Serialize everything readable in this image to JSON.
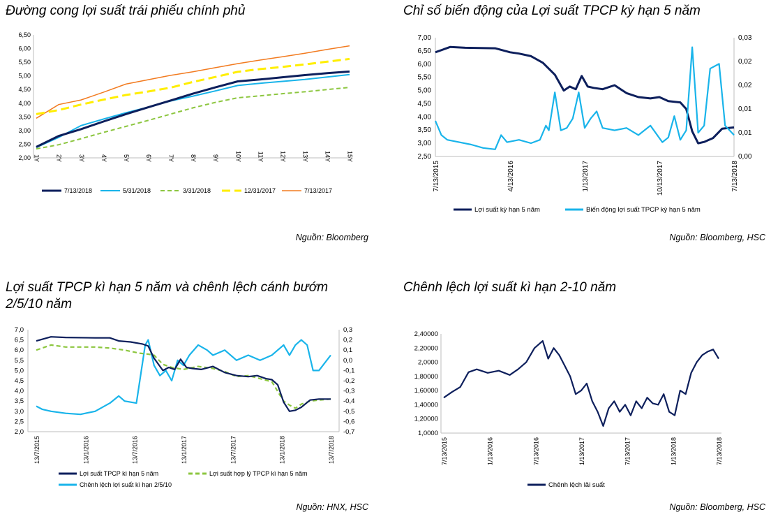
{
  "colors": {
    "navy": "#0d1f5c",
    "cyan": "#19b4ea",
    "green": "#8cc63f",
    "yellow": "#ffee00",
    "orange": "#f27b20",
    "axis": "#bdbdbd"
  },
  "chart_data": [
    {
      "type": "line",
      "title": "Đường cong lợi suất trái phiếu chính phủ",
      "source": "Nguồn: Bloomberg",
      "categories": [
        "1Y",
        "2Y",
        "3Y",
        "4Y",
        "5Y",
        "6Y",
        "7Y",
        "8Y",
        "9Y",
        "10Y",
        "11Y",
        "12Y",
        "13Y",
        "14Y",
        "15Y"
      ],
      "yticks": [
        "2,00",
        "2,50",
        "3,00",
        "3,50",
        "4,00",
        "4,50",
        "5,00",
        "5,50",
        "6,00",
        "6,50"
      ],
      "ylim": [
        2.0,
        6.5
      ],
      "series": [
        {
          "name": "7/13/2018",
          "color": "#0d1f5c",
          "dash": "",
          "width": 3,
          "values": [
            2.4,
            2.8,
            3.05,
            3.33,
            3.6,
            3.85,
            4.1,
            4.35,
            4.58,
            4.8,
            4.87,
            4.95,
            5.03,
            5.1,
            5.16
          ]
        },
        {
          "name": "5/31/2018",
          "color": "#19b4ea",
          "dash": "",
          "width": 2,
          "values": [
            2.38,
            2.75,
            3.18,
            3.42,
            3.65,
            3.86,
            4.08,
            4.26,
            4.45,
            4.65,
            4.73,
            4.8,
            4.87,
            4.96,
            5.05
          ]
        },
        {
          "name": "3/31/2018",
          "color": "#8cc63f",
          "dash": "6,4",
          "width": 2,
          "values": [
            2.33,
            2.48,
            2.7,
            2.93,
            3.15,
            3.37,
            3.6,
            3.83,
            4.03,
            4.2,
            4.27,
            4.35,
            4.42,
            4.5,
            4.58
          ]
        },
        {
          "name": "12/31/2017",
          "color": "#ffee00",
          "dash": "12,6",
          "width": 3,
          "values": [
            3.6,
            3.75,
            3.95,
            4.13,
            4.3,
            4.43,
            4.57,
            4.78,
            4.96,
            5.15,
            5.25,
            5.33,
            5.42,
            5.52,
            5.62
          ]
        },
        {
          "name": "7/13/2017",
          "color": "#f27b20",
          "dash": "",
          "width": 1.5,
          "values": [
            3.45,
            3.95,
            4.12,
            4.4,
            4.7,
            4.86,
            5.02,
            5.15,
            5.3,
            5.45,
            5.58,
            5.7,
            5.83,
            5.97,
            6.1
          ]
        }
      ]
    },
    {
      "type": "line",
      "title": "Chỉ số biến động của Lợi suất TPCP kỳ hạn 5 năm",
      "source": "Nguồn: Bloomberg, HSC",
      "x_ticks": [
        "7/13/2015",
        "4/13/2016",
        "1/13/2017",
        "10/13/2017",
        "7/13/2018"
      ],
      "yticks_left": [
        "2,50",
        "3,00",
        "3,50",
        "4,00",
        "4,50",
        "5,00",
        "5,50",
        "6,00",
        "6,50",
        "7,00"
      ],
      "ylim_left": [
        2.5,
        7.0
      ],
      "yticks_right": [
        "0,00",
        "0,01",
        "0,01",
        "0,02",
        "0,02",
        "0,03"
      ],
      "ylim_right": [
        0.0,
        0.025
      ],
      "series": [
        {
          "name": "Lợi suất kỳ hạn 5 năm",
          "axis": "left",
          "color": "#0d1f5c",
          "x": [
            0,
            0.05,
            0.1,
            0.2,
            0.25,
            0.28,
            0.32,
            0.36,
            0.4,
            0.43,
            0.45,
            0.47,
            0.49,
            0.51,
            0.53,
            0.56,
            0.6,
            0.64,
            0.68,
            0.72,
            0.75,
            0.78,
            0.82,
            0.84,
            0.86,
            0.88,
            0.9,
            0.93,
            0.96,
            1.0
          ],
          "values": [
            6.45,
            6.65,
            6.62,
            6.6,
            6.45,
            6.4,
            6.3,
            6.05,
            5.6,
            5.0,
            5.15,
            5.05,
            5.55,
            5.15,
            5.1,
            5.05,
            5.2,
            4.9,
            4.75,
            4.7,
            4.75,
            4.6,
            4.55,
            4.3,
            3.45,
            3.0,
            3.05,
            3.2,
            3.55,
            3.6
          ]
        },
        {
          "name": "Biến động lợi suất TPCP kỳ hạn 5 năm",
          "axis": "right",
          "color": "#19b4ea",
          "x": [
            0,
            0.02,
            0.04,
            0.08,
            0.12,
            0.16,
            0.2,
            0.22,
            0.24,
            0.28,
            0.32,
            0.35,
            0.37,
            0.38,
            0.4,
            0.42,
            0.44,
            0.46,
            0.48,
            0.5,
            0.52,
            0.54,
            0.56,
            0.6,
            0.64,
            0.68,
            0.72,
            0.76,
            0.78,
            0.8,
            0.82,
            0.84,
            0.86,
            0.88,
            0.9,
            0.92,
            0.95,
            0.97,
            1.0
          ],
          "values": [
            0.0075,
            0.0045,
            0.0035,
            0.003,
            0.0025,
            0.0018,
            0.0015,
            0.0045,
            0.003,
            0.0035,
            0.0028,
            0.0035,
            0.0065,
            0.0055,
            0.0135,
            0.0055,
            0.006,
            0.008,
            0.0135,
            0.006,
            0.008,
            0.0095,
            0.006,
            0.0055,
            0.006,
            0.0045,
            0.0065,
            0.003,
            0.004,
            0.0085,
            0.0035,
            0.0055,
            0.023,
            0.005,
            0.0065,
            0.0185,
            0.0195,
            0.0065,
            0.0045
          ]
        }
      ]
    },
    {
      "type": "line",
      "title": "Lợi suất TPCP kì hạn 5 năm và chênh lệch cánh bướm 2/5/10 năm",
      "source": "Nguồn: HNX, HSC",
      "x_ticks": [
        "13/7/2015",
        "13/1/2016",
        "13/7/2016",
        "13/1/2017",
        "13/7/2017",
        "13/1/2018",
        "13/7/2018"
      ],
      "yticks_left": [
        "2,0",
        "2,5",
        "3,0",
        "3,5",
        "4,0",
        "4,5",
        "5,0",
        "5,5",
        "6,0",
        "6,5",
        "7,0"
      ],
      "ylim_left": [
        2.0,
        7.0
      ],
      "yticks_right": [
        "-0,7",
        "-0,6",
        "-0,5",
        "-0,4",
        "-0,3",
        "-0,2",
        "-0,1",
        "0,0",
        "0,1",
        "0,2",
        "0,3"
      ],
      "ylim_right": [
        -0.7,
        0.3
      ],
      "series": [
        {
          "name": "Lợi suất TPCP  kì hạn 5 năm",
          "axis": "left",
          "color": "#0d1f5c",
          "dash": "",
          "x": [
            0,
            0.05,
            0.1,
            0.2,
            0.25,
            0.28,
            0.32,
            0.36,
            0.38,
            0.4,
            0.43,
            0.45,
            0.47,
            0.49,
            0.51,
            0.53,
            0.56,
            0.6,
            0.64,
            0.68,
            0.72,
            0.75,
            0.78,
            0.8,
            0.82,
            0.84,
            0.86,
            0.88,
            0.9,
            0.93,
            0.96,
            1.0
          ],
          "values": [
            6.45,
            6.65,
            6.62,
            6.6,
            6.6,
            6.45,
            6.4,
            6.3,
            6.2,
            5.6,
            5.0,
            5.15,
            5.05,
            5.55,
            5.15,
            5.1,
            5.05,
            5.2,
            4.9,
            4.75,
            4.7,
            4.75,
            4.6,
            4.55,
            4.3,
            3.45,
            3.0,
            3.05,
            3.2,
            3.55,
            3.6,
            3.6
          ]
        },
        {
          "name": "Lợi suất hợp lý TPCP  kì hạn 5 năm",
          "axis": "left",
          "color": "#8cc63f",
          "dash": "6,4",
          "x": [
            0,
            0.05,
            0.1,
            0.2,
            0.25,
            0.3,
            0.35,
            0.38,
            0.4,
            0.43,
            0.46,
            0.5,
            0.55,
            0.6,
            0.64,
            0.68,
            0.72,
            0.76,
            0.8,
            0.84,
            0.86,
            0.88,
            0.9,
            0.93,
            0.96,
            1.0
          ],
          "values": [
            6.0,
            6.25,
            6.15,
            6.15,
            6.1,
            6.0,
            5.85,
            5.8,
            5.75,
            5.3,
            5.15,
            5.05,
            5.2,
            5.1,
            4.95,
            4.7,
            4.75,
            4.6,
            4.45,
            3.5,
            3.3,
            3.15,
            3.35,
            3.5,
            3.55,
            3.6
          ]
        },
        {
          "name": "Chênh lệch lợi suất kì hạn 2/5/10",
          "axis": "right",
          "color": "#19b4ea",
          "dash": "",
          "x": [
            0,
            0.02,
            0.05,
            0.1,
            0.15,
            0.2,
            0.25,
            0.28,
            0.3,
            0.34,
            0.37,
            0.38,
            0.4,
            0.42,
            0.44,
            0.46,
            0.48,
            0.5,
            0.52,
            0.55,
            0.58,
            0.6,
            0.64,
            0.68,
            0.72,
            0.76,
            0.8,
            0.84,
            0.86,
            0.88,
            0.9,
            0.92,
            0.94,
            0.96,
            1.0
          ],
          "values": [
            -0.45,
            -0.48,
            -0.5,
            -0.52,
            -0.53,
            -0.5,
            -0.42,
            -0.35,
            -0.4,
            -0.42,
            0.15,
            0.2,
            -0.05,
            -0.15,
            -0.1,
            -0.2,
            0.0,
            -0.05,
            0.05,
            0.15,
            0.1,
            0.05,
            0.1,
            0.0,
            0.05,
            0.0,
            0.05,
            0.15,
            0.05,
            0.15,
            0.2,
            0.15,
            -0.1,
            -0.1,
            0.05
          ]
        }
      ]
    },
    {
      "type": "line",
      "title": "Chênh lệch lợi suất kì hạn 2-10 năm",
      "source": "Nguồn: Bloomberg, HSC",
      "x_ticks": [
        "7/13/2015",
        "1/13/2016",
        "7/13/2016",
        "1/13/2017",
        "7/13/2017",
        "1/13/2018",
        "7/13/2018"
      ],
      "yticks": [
        "1,0000",
        "1,20000",
        "1,40000",
        "1,60000",
        "1,80000",
        "2,0000",
        "2,20000",
        "2,40000"
      ],
      "ylim": [
        1.0,
        2.4
      ],
      "series": [
        {
          "name": "Chênh lệch lãi suất",
          "color": "#0d1f5c",
          "x": [
            0,
            0.03,
            0.06,
            0.09,
            0.12,
            0.16,
            0.2,
            0.24,
            0.27,
            0.3,
            0.33,
            0.36,
            0.38,
            0.4,
            0.42,
            0.44,
            0.46,
            0.48,
            0.5,
            0.52,
            0.54,
            0.56,
            0.58,
            0.6,
            0.62,
            0.64,
            0.66,
            0.68,
            0.7,
            0.72,
            0.74,
            0.76,
            0.78,
            0.8,
            0.82,
            0.84,
            0.86,
            0.88,
            0.9,
            0.92,
            0.94,
            0.96,
            0.98,
            1.0
          ],
          "values": [
            1.5,
            1.58,
            1.65,
            1.86,
            1.9,
            1.85,
            1.88,
            1.82,
            1.9,
            2.0,
            2.2,
            2.3,
            2.05,
            2.2,
            2.1,
            1.95,
            1.8,
            1.55,
            1.6,
            1.7,
            1.45,
            1.3,
            1.1,
            1.35,
            1.45,
            1.3,
            1.4,
            1.25,
            1.45,
            1.35,
            1.5,
            1.42,
            1.4,
            1.55,
            1.3,
            1.25,
            1.6,
            1.55,
            1.85,
            2.0,
            2.1,
            2.15,
            2.18,
            2.05
          ]
        }
      ]
    }
  ]
}
